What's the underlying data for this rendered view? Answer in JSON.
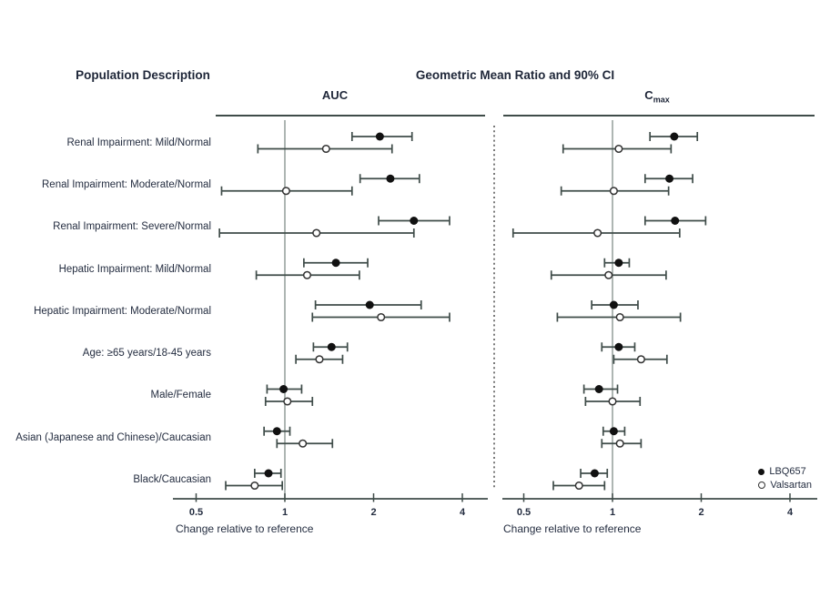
{
  "header": {
    "left_title": "Population Description",
    "right_title": "Geometric Mean Ratio and 90% CI"
  },
  "chart_data": {
    "type": "forest",
    "x_scale": "log2",
    "x_ticks": [
      "0.5",
      "1",
      "2",
      "4"
    ],
    "x_tick_values": [
      0.5,
      1,
      2,
      4
    ],
    "reference_line": 1,
    "x_axis_label": "Change relative to reference",
    "grid": "off",
    "legend_position": "bottom-right",
    "categories": [
      "Renal Impairment: Mild/Normal",
      "Renal Impairment: Moderate/Normal",
      "Renal Impairment: Severe/Normal",
      "Hepatic Impairment: Mild/Normal",
      "Hepatic Impairment: Moderate/Normal",
      "Age: ≥65 years/18-45 years",
      "Male/Female",
      "Asian (Japanese and Chinese)/Caucasian",
      "Black/Caucasian"
    ],
    "panels": [
      {
        "title": "AUC",
        "title_base": "AUC",
        "title_sub": "",
        "series": [
          {
            "name": "LBQ657",
            "marker": "filled",
            "points": [
              {
                "v": 2.1,
                "lo": 1.69,
                "hi": 2.7
              },
              {
                "v": 2.28,
                "lo": 1.8,
                "hi": 2.86
              },
              {
                "v": 2.74,
                "lo": 2.08,
                "hi": 3.62
              },
              {
                "v": 1.49,
                "lo": 1.16,
                "hi": 1.91
              },
              {
                "v": 1.94,
                "lo": 1.27,
                "hi": 2.9
              },
              {
                "v": 1.44,
                "lo": 1.25,
                "hi": 1.63
              },
              {
                "v": 0.99,
                "lo": 0.87,
                "hi": 1.14
              },
              {
                "v": 0.94,
                "lo": 0.85,
                "hi": 1.04
              },
              {
                "v": 0.88,
                "lo": 0.79,
                "hi": 0.97
              }
            ]
          },
          {
            "name": "Valsartan",
            "marker": "open",
            "points": [
              {
                "v": 1.38,
                "lo": 0.81,
                "hi": 2.31
              },
              {
                "v": 1.01,
                "lo": 0.61,
                "hi": 1.69
              },
              {
                "v": 1.28,
                "lo": 0.6,
                "hi": 2.74
              },
              {
                "v": 1.19,
                "lo": 0.8,
                "hi": 1.79
              },
              {
                "v": 2.12,
                "lo": 1.24,
                "hi": 3.62
              },
              {
                "v": 1.31,
                "lo": 1.09,
                "hi": 1.57
              },
              {
                "v": 1.02,
                "lo": 0.86,
                "hi": 1.24
              },
              {
                "v": 1.15,
                "lo": 0.94,
                "hi": 1.45
              },
              {
                "v": 0.79,
                "lo": 0.63,
                "hi": 0.98
              }
            ]
          }
        ]
      },
      {
        "title": "Cmax",
        "title_base": "C",
        "title_sub": "max",
        "series": [
          {
            "name": "LBQ657",
            "marker": "filled",
            "points": [
              {
                "v": 1.62,
                "lo": 1.34,
                "hi": 1.94
              },
              {
                "v": 1.56,
                "lo": 1.29,
                "hi": 1.87
              },
              {
                "v": 1.63,
                "lo": 1.29,
                "hi": 2.07
              },
              {
                "v": 1.05,
                "lo": 0.94,
                "hi": 1.14
              },
              {
                "v": 1.01,
                "lo": 0.85,
                "hi": 1.22
              },
              {
                "v": 1.05,
                "lo": 0.92,
                "hi": 1.19
              },
              {
                "v": 0.9,
                "lo": 0.8,
                "hi": 1.04
              },
              {
                "v": 1.01,
                "lo": 0.93,
                "hi": 1.1
              },
              {
                "v": 0.87,
                "lo": 0.78,
                "hi": 0.96
              }
            ]
          },
          {
            "name": "Valsartan",
            "marker": "open",
            "points": [
              {
                "v": 1.05,
                "lo": 0.68,
                "hi": 1.58
              },
              {
                "v": 1.01,
                "lo": 0.67,
                "hi": 1.55
              },
              {
                "v": 0.89,
                "lo": 0.46,
                "hi": 1.69
              },
              {
                "v": 0.97,
                "lo": 0.62,
                "hi": 1.52
              },
              {
                "v": 1.06,
                "lo": 0.65,
                "hi": 1.7
              },
              {
                "v": 1.25,
                "lo": 1.01,
                "hi": 1.53
              },
              {
                "v": 1.0,
                "lo": 0.81,
                "hi": 1.24
              },
              {
                "v": 1.06,
                "lo": 0.92,
                "hi": 1.25
              },
              {
                "v": 0.77,
                "lo": 0.63,
                "hi": 0.94
              }
            ]
          }
        ]
      }
    ],
    "legend": [
      {
        "label": "LBQ657",
        "marker": "filled"
      },
      {
        "label": "Valsartan",
        "marker": "open"
      }
    ]
  },
  "colors": {
    "text": "#1e2638",
    "line": "#3f4c49",
    "reference_line": "#949e9a",
    "divider": "#4d4d4d",
    "marker_filled": "#111111",
    "marker_open_fill": "#ffffff",
    "marker_open_stroke": "#333333"
  }
}
